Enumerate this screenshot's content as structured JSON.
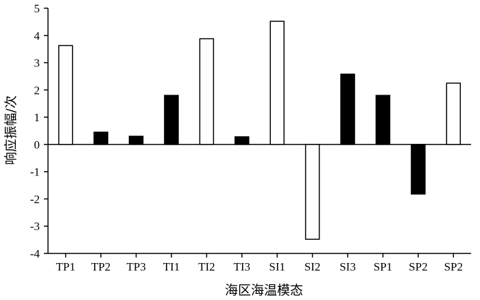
{
  "chart_data": {
    "type": "bar",
    "title": "",
    "xlabel": "海区海温模态",
    "ylabel": "响应振幅/次",
    "categories": [
      "TP1",
      "TP2",
      "TP3",
      "TI1",
      "TI2",
      "TI3",
      "SI1",
      "SI2",
      "SI3",
      "SP1",
      "SP2",
      "SP2"
    ],
    "values": [
      3.63,
      0.45,
      0.3,
      1.8,
      3.88,
      0.28,
      4.52,
      -3.48,
      2.58,
      1.8,
      -1.82,
      2.25
    ],
    "fills": [
      "#ffffff",
      "#000000",
      "#000000",
      "#000000",
      "#ffffff",
      "#000000",
      "#ffffff",
      "#ffffff",
      "#000000",
      "#000000",
      "#000000",
      "#ffffff"
    ],
    "ylim": [
      -4,
      5
    ],
    "yticks": [
      "-4",
      "-3",
      "-2",
      "-1",
      "0",
      "1",
      "2",
      "3",
      "4",
      "5"
    ],
    "grid": false,
    "legend": "none",
    "bar_stroke": "#000000"
  }
}
